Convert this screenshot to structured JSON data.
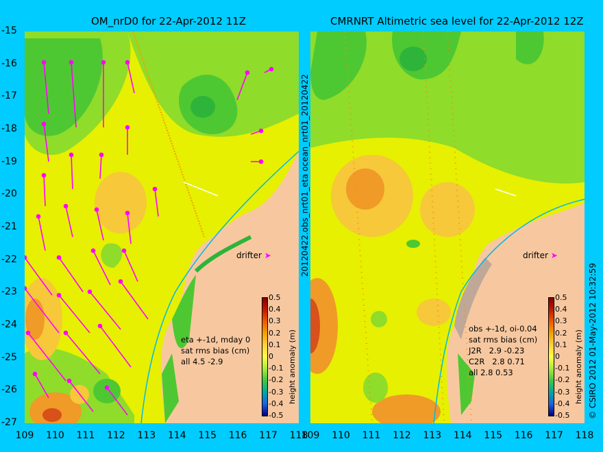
{
  "left_panel": {
    "title": "OM_nrD0 for 22-Apr-2012 11Z",
    "stats_lines": [
      "eta +-1d, mday 0",
      "sat rms bias (cm)",
      "all 4.5 -2.9"
    ],
    "drifter_label": "drifter"
  },
  "right_panel": {
    "title": "CMRNRT Altimetric sea level  for 22-Apr-2012 12Z",
    "stats_lines": [
      "obs +-1d, oi-0.04",
      "sat rms bias (cm)",
      "J2R   2.9 -0.23",
      "C2R   2.8 0.71",
      "all 2.8 0.53"
    ],
    "drifter_label": "drifter"
  },
  "y_ticks": [
    "-15",
    "-16",
    "-17",
    "-18",
    "-19",
    "-20",
    "-21",
    "-22",
    "-23",
    "-24",
    "-25",
    "-26",
    "-27"
  ],
  "left_x_ticks": [
    "109",
    "110",
    "111",
    "112",
    "113",
    "114",
    "115",
    "116",
    "117",
    "118"
  ],
  "right_x_ticks": [
    "109",
    "110",
    "111",
    "112",
    "113",
    "114",
    "115",
    "116",
    "117",
    "118"
  ],
  "colorbar": {
    "title": "height anomaly (m)",
    "labels": [
      "0.5",
      "0.4",
      "0.3",
      "0.2",
      "0.1",
      "0",
      "-0.1",
      "-0.2",
      "-0.3",
      "-0.4",
      "-0.5"
    ],
    "colors": [
      "#7f0000",
      "#c01a00",
      "#ee5a00",
      "#f4a000",
      "#ffd23c",
      "#ffff40",
      "#a8ec3c",
      "#40c840",
      "#00a8a0",
      "#2060e0",
      "#000080"
    ]
  },
  "side_labels": {
    "middle": "20120422.obs_nrt01_eta   ocean_nrt01_20120422",
    "right": "© CSIRO 2012    01-May-2012 10:32:59"
  },
  "colors": {
    "background": "#00ccff",
    "land": "#f7c8a0",
    "sea_base": "#e6f000",
    "vector": "#ff00ff",
    "coast": "#00b8e8"
  }
}
